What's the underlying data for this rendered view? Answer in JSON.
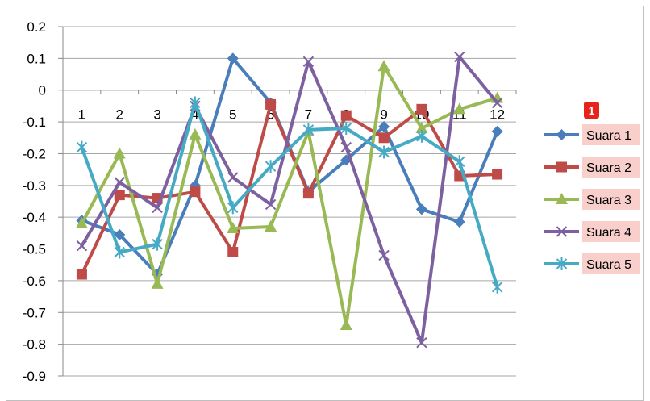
{
  "chart_data": {
    "type": "line",
    "x": [
      "1",
      "2",
      "3",
      "4",
      "5",
      "6",
      "7",
      "8",
      "9",
      "10",
      "11",
      "12"
    ],
    "ylim": [
      -0.9,
      0.2
    ],
    "yticks": [
      "0.2",
      "0.1",
      "0",
      "-0.1",
      "-0.2",
      "-0.3",
      "-0.4",
      "-0.5",
      "-0.6",
      "-0.7",
      "-0.8",
      "-0.9"
    ],
    "grid": true,
    "legend_position": "right",
    "series": [
      {
        "name": "Suara 1",
        "color": "#4a7ebb",
        "marker": "diamond",
        "values": [
          -0.41,
          -0.455,
          -0.58,
          -0.3,
          0.1,
          -0.04,
          -0.32,
          -0.22,
          -0.115,
          -0.375,
          -0.415,
          -0.13
        ]
      },
      {
        "name": "Suara 2",
        "color": "#be4b48",
        "marker": "square",
        "values": [
          -0.58,
          -0.33,
          -0.34,
          -0.32,
          -0.51,
          -0.045,
          -0.325,
          -0.08,
          -0.15,
          -0.06,
          -0.27,
          -0.265
        ]
      },
      {
        "name": "Suara 3",
        "color": "#98b954",
        "marker": "triangle",
        "values": [
          -0.42,
          -0.2,
          -0.61,
          -0.14,
          -0.435,
          -0.43,
          -0.13,
          -0.74,
          0.075,
          -0.12,
          -0.06,
          -0.025
        ]
      },
      {
        "name": "Suara 4",
        "color": "#7d60a0",
        "marker": "x",
        "values": [
          -0.49,
          -0.29,
          -0.37,
          -0.05,
          -0.275,
          -0.36,
          0.09,
          -0.18,
          -0.52,
          -0.795,
          0.105,
          -0.04
        ]
      },
      {
        "name": "Suara 5",
        "color": "#46aac5",
        "marker": "star",
        "values": [
          -0.18,
          -0.51,
          -0.485,
          -0.04,
          -0.37,
          -0.24,
          -0.125,
          -0.12,
          -0.195,
          -0.145,
          -0.225,
          -0.62
        ]
      }
    ]
  },
  "annotation": {
    "badge_label": "1"
  }
}
